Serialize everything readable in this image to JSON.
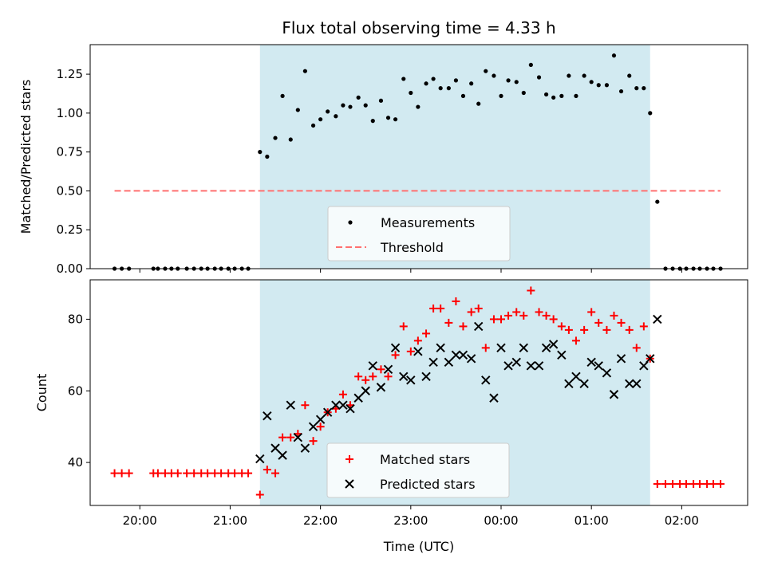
{
  "chart_data": [
    {
      "type": "scatter",
      "title": "Flux total observing time = 4.33 h",
      "xlabel": "",
      "ylabel": "Matched/Predicted stars",
      "x_ticks": [
        "20:00",
        "21:00",
        "22:00",
        "23:00",
        "00:00",
        "01:00",
        "02:00"
      ],
      "x_tick_hours": [
        20,
        21,
        22,
        23,
        24,
        25,
        26
      ],
      "xlim": [
        19.45,
        26.73
      ],
      "ylim": [
        0,
        1.44
      ],
      "y_ticks": [
        "0.00",
        "0.25",
        "0.50",
        "0.75",
        "1.00",
        "1.25"
      ],
      "y_tick_values": [
        0,
        0.25,
        0.5,
        0.75,
        1.0,
        1.25
      ],
      "shaded_span": [
        21.33,
        25.65
      ],
      "shade_color": "#add8e6",
      "legend": {
        "placement": "lower center",
        "entries": [
          "Measurements",
          "Threshold"
        ]
      },
      "series": [
        {
          "name": "Measurements",
          "kind": "points",
          "color": "#000000",
          "x": [
            19.72,
            19.8,
            19.88,
            20.15,
            20.2,
            20.28,
            20.35,
            20.42,
            20.52,
            20.6,
            20.68,
            20.75,
            20.83,
            20.9,
            20.98,
            21.05,
            21.13,
            21.2,
            21.33,
            21.41,
            21.5,
            21.58,
            21.67,
            21.75,
            21.83,
            21.92,
            22.0,
            22.08,
            22.17,
            22.25,
            22.33,
            22.42,
            22.5,
            22.58,
            22.67,
            22.75,
            22.83,
            22.92,
            23.0,
            23.08,
            23.17,
            23.25,
            23.33,
            23.42,
            23.5,
            23.58,
            23.67,
            23.75,
            23.83,
            23.92,
            24.0,
            24.08,
            24.17,
            24.25,
            24.33,
            24.42,
            24.5,
            24.58,
            24.67,
            24.75,
            24.83,
            24.92,
            25.0,
            25.08,
            25.17,
            25.25,
            25.33,
            25.42,
            25.5,
            25.58,
            25.65,
            25.73,
            25.82,
            25.9,
            25.98,
            26.05,
            26.13,
            26.2,
            26.28,
            26.35,
            26.43
          ],
          "y": [
            0,
            0,
            0,
            0,
            0,
            0,
            0,
            0,
            0,
            0,
            0,
            0,
            0,
            0,
            0,
            0,
            0,
            0,
            0.75,
            0.72,
            0.84,
            1.11,
            0.83,
            1.02,
            1.27,
            0.92,
            0.96,
            1.01,
            0.98,
            1.05,
            1.04,
            1.1,
            1.05,
            0.95,
            1.08,
            0.97,
            0.96,
            1.22,
            1.13,
            1.04,
            1.19,
            1.22,
            1.16,
            1.16,
            1.21,
            1.11,
            1.19,
            1.06,
            1.27,
            1.24,
            1.11,
            1.21,
            1.2,
            1.13,
            1.31,
            1.23,
            1.12,
            1.1,
            1.11,
            1.24,
            1.11,
            1.24,
            1.2,
            1.18,
            1.18,
            1.37,
            1.14,
            1.24,
            1.16,
            1.16,
            1.0,
            0.43,
            0,
            0,
            0,
            0,
            0,
            0,
            0,
            0,
            0
          ]
        },
        {
          "name": "Threshold",
          "kind": "dashed-line",
          "color": "#ff7070",
          "x": [
            19.72,
            26.43
          ],
          "y": [
            0.5,
            0.5
          ]
        }
      ]
    },
    {
      "type": "scatter",
      "title": "",
      "xlabel": "Time (UTC)",
      "ylabel": "Count",
      "x_ticks": [
        "20:00",
        "21:00",
        "22:00",
        "23:00",
        "00:00",
        "01:00",
        "02:00"
      ],
      "x_tick_hours": [
        20,
        21,
        22,
        23,
        24,
        25,
        26
      ],
      "xlim": [
        19.45,
        26.73
      ],
      "ylim": [
        28,
        91
      ],
      "y_ticks": [
        "40",
        "60",
        "80"
      ],
      "y_tick_values": [
        40,
        60,
        80
      ],
      "shaded_span": [
        21.33,
        25.65
      ],
      "shade_color": "#add8e6",
      "legend": {
        "placement": "lower center",
        "entries": [
          "Matched stars",
          "Predicted stars"
        ]
      },
      "series": [
        {
          "name": "Matched stars",
          "marker": "plus",
          "color": "#ff0000",
          "x": [
            19.72,
            19.8,
            19.88,
            20.15,
            20.2,
            20.28,
            20.35,
            20.42,
            20.52,
            20.6,
            20.68,
            20.75,
            20.83,
            20.9,
            20.98,
            21.05,
            21.13,
            21.2,
            21.33,
            21.41,
            21.5,
            21.58,
            21.67,
            21.75,
            21.83,
            21.92,
            22.0,
            22.08,
            22.17,
            22.25,
            22.33,
            22.42,
            22.5,
            22.58,
            22.67,
            22.75,
            22.83,
            22.92,
            23.0,
            23.08,
            23.17,
            23.25,
            23.33,
            23.42,
            23.5,
            23.58,
            23.67,
            23.75,
            23.83,
            23.92,
            24.0,
            24.08,
            24.17,
            24.25,
            24.33,
            24.42,
            24.5,
            24.58,
            24.67,
            24.75,
            24.83,
            24.92,
            25.0,
            25.08,
            25.17,
            25.25,
            25.33,
            25.42,
            25.5,
            25.58,
            25.65,
            25.73,
            25.82,
            25.9,
            25.98,
            26.05,
            26.13,
            26.2,
            26.28,
            26.35,
            26.43
          ],
          "y": [
            37,
            37,
            37,
            37,
            37,
            37,
            37,
            37,
            37,
            37,
            37,
            37,
            37,
            37,
            37,
            37,
            37,
            37,
            31,
            38,
            37,
            47,
            47,
            48,
            56,
            46,
            50,
            54,
            55,
            59,
            56,
            64,
            63,
            64,
            66,
            64,
            70,
            78,
            71,
            74,
            76,
            83,
            83,
            79,
            85,
            78,
            82,
            83,
            72,
            80,
            80,
            81,
            82,
            81,
            88,
            82,
            81,
            80,
            78,
            77,
            74,
            77,
            82,
            79,
            77,
            81,
            79,
            77,
            72,
            78,
            69,
            34,
            34,
            34,
            34,
            34,
            34,
            34,
            34,
            34,
            34
          ]
        },
        {
          "name": "Predicted stars",
          "marker": "x",
          "color": "#000000",
          "x": [
            21.33,
            21.41,
            21.5,
            21.58,
            21.67,
            21.75,
            21.83,
            21.92,
            22.0,
            22.08,
            22.17,
            22.25,
            22.33,
            22.42,
            22.5,
            22.58,
            22.67,
            22.75,
            22.83,
            22.92,
            23.0,
            23.08,
            23.17,
            23.25,
            23.33,
            23.42,
            23.5,
            23.58,
            23.67,
            23.75,
            23.83,
            23.92,
            24.0,
            24.08,
            24.17,
            24.25,
            24.33,
            24.42,
            24.5,
            24.58,
            24.67,
            24.75,
            24.83,
            24.92,
            25.0,
            25.08,
            25.17,
            25.25,
            25.33,
            25.42,
            25.5,
            25.58,
            25.65,
            25.73
          ],
          "y": [
            41,
            53,
            44,
            42,
            56,
            47,
            44,
            50,
            52,
            54,
            56,
            56,
            55,
            58,
            60,
            67,
            61,
            66,
            72,
            64,
            63,
            71,
            64,
            68,
            72,
            68,
            70,
            70,
            69,
            78,
            63,
            58,
            72,
            67,
            68,
            72,
            67,
            67,
            72,
            73,
            70,
            62,
            64,
            62,
            68,
            67,
            65,
            59,
            69,
            62,
            62,
            67,
            69,
            80
          ]
        }
      ]
    }
  ]
}
